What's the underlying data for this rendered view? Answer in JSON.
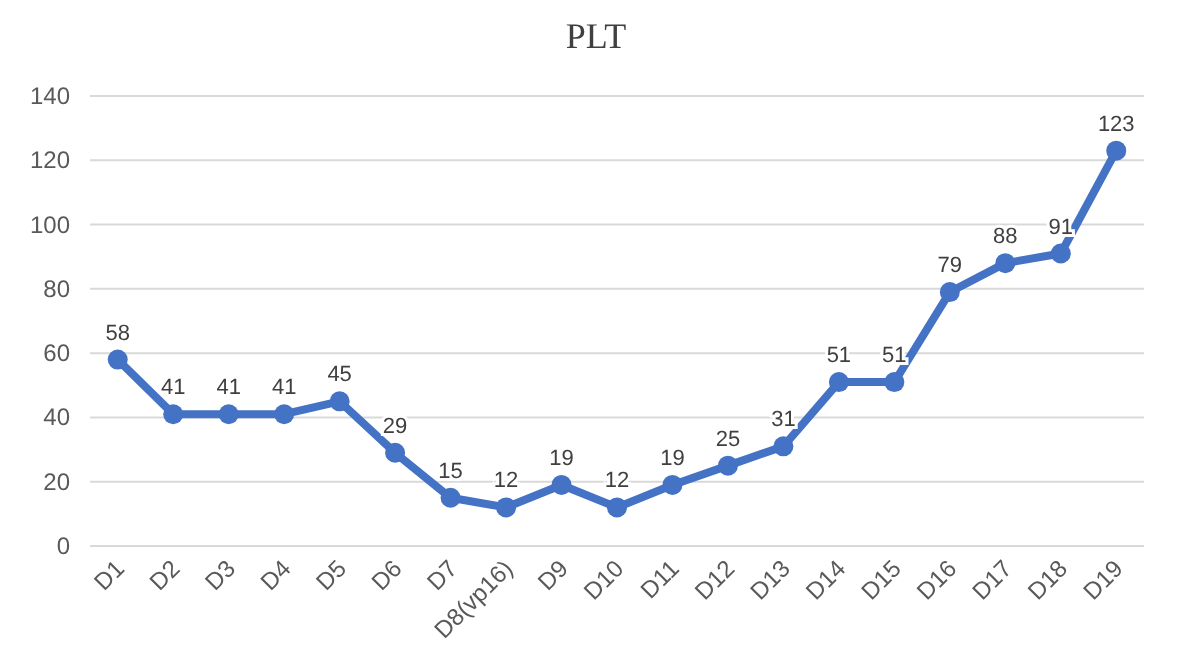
{
  "chart_data": {
    "type": "line",
    "title": "PLT",
    "categories": [
      "D1",
      "D2",
      "D3",
      "D4",
      "D5",
      "D6",
      "D7",
      "D8(vp16)",
      "D9",
      "D10",
      "D11",
      "D12",
      "D13",
      "D14",
      "D15",
      "D16",
      "D17",
      "D18",
      "D19"
    ],
    "series": [
      {
        "color": "#4472c4",
        "values": [
          58,
          41,
          41,
          41,
          45,
          29,
          15,
          12,
          19,
          12,
          19,
          25,
          31,
          51,
          51,
          79,
          88,
          91,
          123
        ]
      }
    ],
    "ylim": [
      0,
      140
    ],
    "yticks": [
      0,
      20,
      40,
      60,
      80,
      100,
      120,
      140
    ],
    "grid": "y",
    "marker": "circle",
    "line_style": "solid",
    "data_labels": true
  }
}
